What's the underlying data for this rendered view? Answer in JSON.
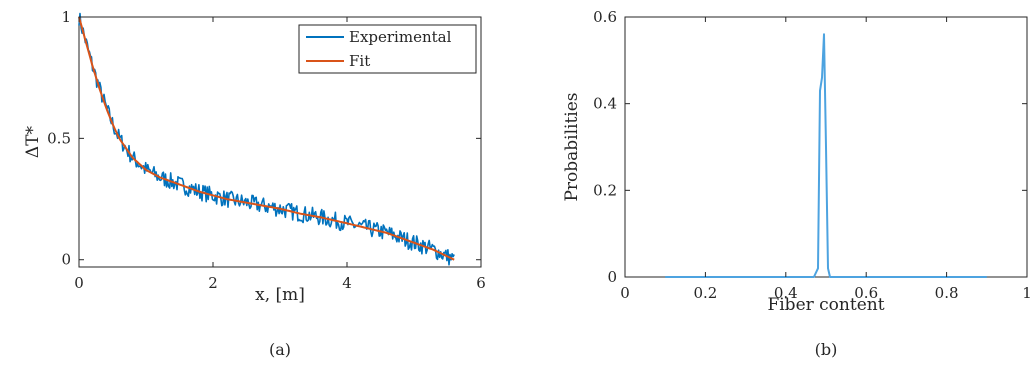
{
  "chart_data": [
    {
      "type": "line",
      "caption": "(a)",
      "xlabel": "x, [m]",
      "ylabel": "ΔT*",
      "xlim": [
        0,
        6
      ],
      "ylim": [
        -0.03,
        1.0
      ],
      "xticks": [
        0,
        2,
        4,
        6
      ],
      "yticks": [
        0,
        0.5,
        1
      ],
      "xtick_labels": [
        "0",
        "2",
        "4",
        "6"
      ],
      "ytick_labels": [
        "0",
        "0.5",
        "1"
      ],
      "grid": false,
      "legend": "top-right",
      "series": [
        {
          "name": "Experimental",
          "color": "#0072BD",
          "noisy": true,
          "x": [
            0,
            0.1,
            0.2,
            0.3,
            0.4,
            0.5,
            0.6,
            0.8,
            1.0,
            1.2,
            1.4,
            1.6,
            1.8,
            2.0,
            2.2,
            2.5,
            2.8,
            3.0,
            3.3,
            3.6,
            4.0,
            4.3,
            4.6,
            5.0,
            5.3,
            5.6
          ],
          "y": [
            1.0,
            0.9,
            0.8,
            0.71,
            0.63,
            0.56,
            0.5,
            0.42,
            0.37,
            0.34,
            0.32,
            0.3,
            0.28,
            0.265,
            0.25,
            0.235,
            0.22,
            0.21,
            0.19,
            0.175,
            0.15,
            0.13,
            0.11,
            0.07,
            0.04,
            0.0
          ]
        },
        {
          "name": "Fit",
          "color": "#D95319",
          "noisy": false,
          "x": [
            0,
            0.1,
            0.2,
            0.3,
            0.4,
            0.5,
            0.6,
            0.8,
            1.0,
            1.2,
            1.4,
            1.6,
            1.8,
            2.0,
            2.2,
            2.5,
            2.8,
            3.0,
            3.3,
            3.6,
            4.0,
            4.3,
            4.6,
            5.0,
            5.3,
            5.6
          ],
          "y": [
            1.0,
            0.9,
            0.8,
            0.71,
            0.63,
            0.56,
            0.5,
            0.42,
            0.37,
            0.34,
            0.32,
            0.3,
            0.28,
            0.265,
            0.25,
            0.235,
            0.22,
            0.21,
            0.19,
            0.175,
            0.15,
            0.13,
            0.11,
            0.07,
            0.04,
            0.0
          ]
        }
      ]
    },
    {
      "type": "line",
      "caption": "(b)",
      "xlabel": "Fiber content",
      "ylabel": "Probabilities",
      "xlim": [
        0,
        1
      ],
      "ylim": [
        0,
        0.6
      ],
      "xticks": [
        0,
        0.2,
        0.4,
        0.6,
        0.8,
        1
      ],
      "yticks": [
        0,
        0.2,
        0.4,
        0.6
      ],
      "xtick_labels": [
        "0",
        "0.2",
        "0.4",
        "0.6",
        "0.8",
        "1"
      ],
      "ytick_labels": [
        "0",
        "0.2",
        "0.4",
        "0.6"
      ],
      "grid": false,
      "series": [
        {
          "color": "#4DA3E0",
          "x": [
            0.1,
            0.47,
            0.48,
            0.485,
            0.49,
            0.495,
            0.5,
            0.505,
            0.51,
            0.52,
            0.9
          ],
          "y": [
            0,
            0,
            0.02,
            0.43,
            0.46,
            0.56,
            0.3,
            0.02,
            0,
            0,
            0
          ]
        }
      ]
    }
  ]
}
